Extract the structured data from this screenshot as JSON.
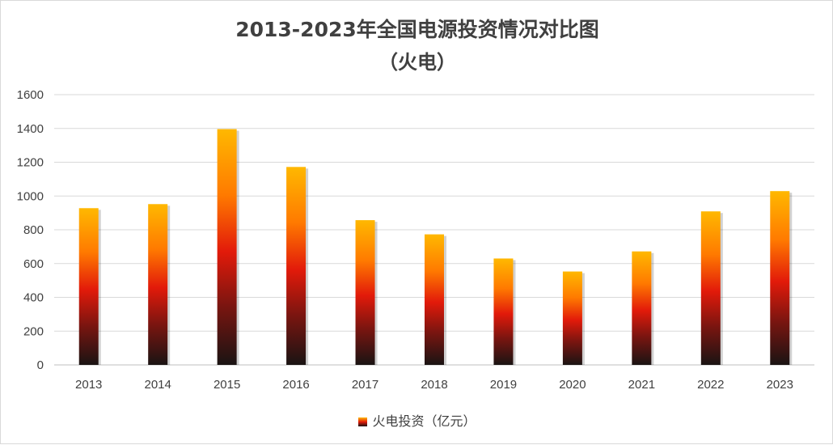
{
  "chart_data": {
    "type": "bar",
    "title": "2013-2023年全国电源投资情况对比图",
    "subtitle": "（火电）",
    "categories": [
      "2013",
      "2014",
      "2015",
      "2016",
      "2017",
      "2018",
      "2019",
      "2020",
      "2021",
      "2022",
      "2023"
    ],
    "series": [
      {
        "name": "火电投资（亿元）",
        "values": [
          928,
          952,
          1396,
          1172,
          857,
          773,
          630,
          553,
          672,
          909,
          1029
        ]
      }
    ],
    "ylim": [
      0,
      1600
    ],
    "yticks": [
      0,
      200,
      400,
      600,
      800,
      1000,
      1200,
      1400,
      1600
    ],
    "grid": true,
    "legend_position": "bottom",
    "colors": {
      "bar_top": "#ffb800",
      "bar_mid": "#e21a0a",
      "bar_bottom": "#1a1413",
      "grid": "#d9d9d9",
      "text": "#404040"
    }
  }
}
